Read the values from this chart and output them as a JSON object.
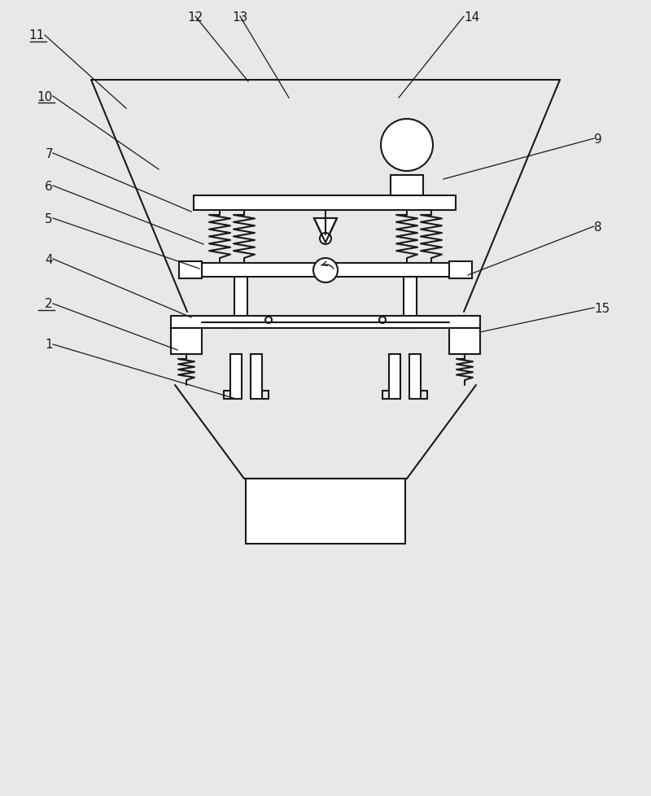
{
  "bg_color": "#e8e8e8",
  "line_color": "#1a1a1a",
  "line_width": 1.5,
  "thin_lw": 0.9,
  "labels_info": [
    [
      "11",
      55,
      935,
      155,
      845,
      true,
      "right"
    ],
    [
      "12",
      240,
      958,
      305,
      878,
      false,
      "center"
    ],
    [
      "13",
      295,
      958,
      355,
      858,
      false,
      "center"
    ],
    [
      "14",
      570,
      958,
      490,
      858,
      false,
      "left"
    ],
    [
      "10",
      65,
      860,
      195,
      770,
      true,
      "right"
    ],
    [
      "7",
      65,
      790,
      235,
      718,
      false,
      "right"
    ],
    [
      "6",
      65,
      750,
      250,
      678,
      false,
      "right"
    ],
    [
      "5",
      65,
      710,
      245,
      648,
      false,
      "right"
    ],
    [
      "4",
      65,
      660,
      235,
      588,
      false,
      "right"
    ],
    [
      "2",
      65,
      605,
      218,
      548,
      true,
      "right"
    ],
    [
      "1",
      65,
      555,
      290,
      488,
      false,
      "right"
    ],
    [
      "9",
      730,
      808,
      545,
      758,
      false,
      "left"
    ],
    [
      "8",
      730,
      700,
      575,
      640,
      false,
      "left"
    ],
    [
      "15",
      730,
      600,
      590,
      570,
      false,
      "left"
    ]
  ]
}
